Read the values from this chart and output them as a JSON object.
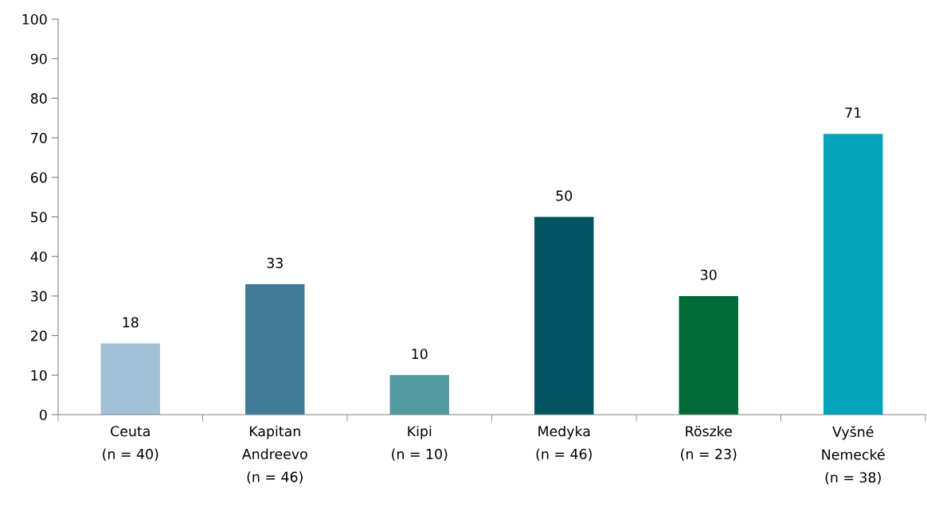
{
  "chart_data": {
    "type": "bar",
    "categories": [
      "Ceuta\n(n = 40)",
      "Kapitan\nAndreevo\n(n = 46)",
      "Kipi\n(n = 10)",
      "Medyka\n(n = 46)",
      "Röszke\n(n = 23)",
      "Vyšné\nNemecké\n(n = 38)"
    ],
    "values": [
      18,
      33,
      10,
      50,
      30,
      71
    ],
    "colors": [
      "#a3c1d6",
      "#427b98",
      "#5499a0",
      "#00535f",
      "#006a38",
      "#00a3b8"
    ],
    "ylim": [
      0,
      100
    ],
    "yticks": [
      0,
      10,
      20,
      30,
      40,
      50,
      60,
      70,
      80,
      90,
      100
    ],
    "data_labels": true,
    "grid": false,
    "legend": false
  }
}
